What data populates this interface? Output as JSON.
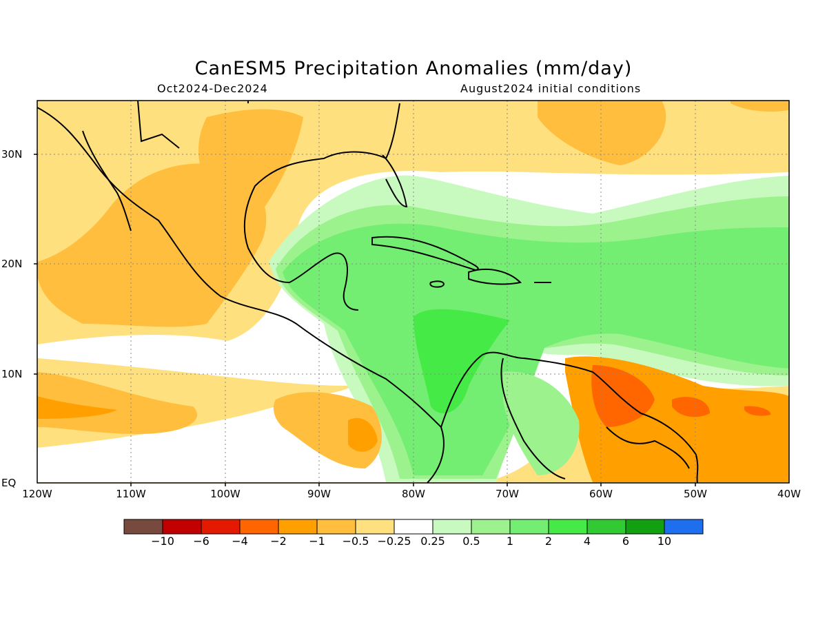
{
  "title": "CanESM5 Precipitation Anomalies (mm/day)",
  "period": "Oct2024-Dec2024",
  "init": "August2024 initial conditions",
  "x_ticks": [
    "120W",
    "110W",
    "100W",
    "90W",
    "80W",
    "70W",
    "60W",
    "50W",
    "40W"
  ],
  "y_ticks": [
    "30N",
    "20N",
    "10N",
    "EQ"
  ],
  "colorbar": {
    "labels": [
      "−10",
      "−6",
      "−4",
      "−2",
      "−1",
      "−0.5",
      "−0.25",
      "0.25",
      "0.5",
      "1",
      "2",
      "4",
      "6",
      "10"
    ],
    "colors": [
      "#784a3e",
      "#c20000",
      "#e41a00",
      "#ff6600",
      "#ff9f00",
      "#ffbe3e",
      "#ffe07e",
      "#ffffff",
      "#c8fac0",
      "#9cf28c",
      "#74ee72",
      "#46ea46",
      "#32ca32",
      "#12a012",
      "#1e6ef0"
    ]
  },
  "legend_values": [
    -10,
    -6,
    -4,
    -2,
    -1,
    -0.5,
    -0.25,
    0.25,
    0.5,
    1,
    2,
    4,
    6,
    10
  ],
  "region": {
    "lon_range": [
      -120,
      -40
    ],
    "lat_range": [
      0,
      35
    ]
  }
}
